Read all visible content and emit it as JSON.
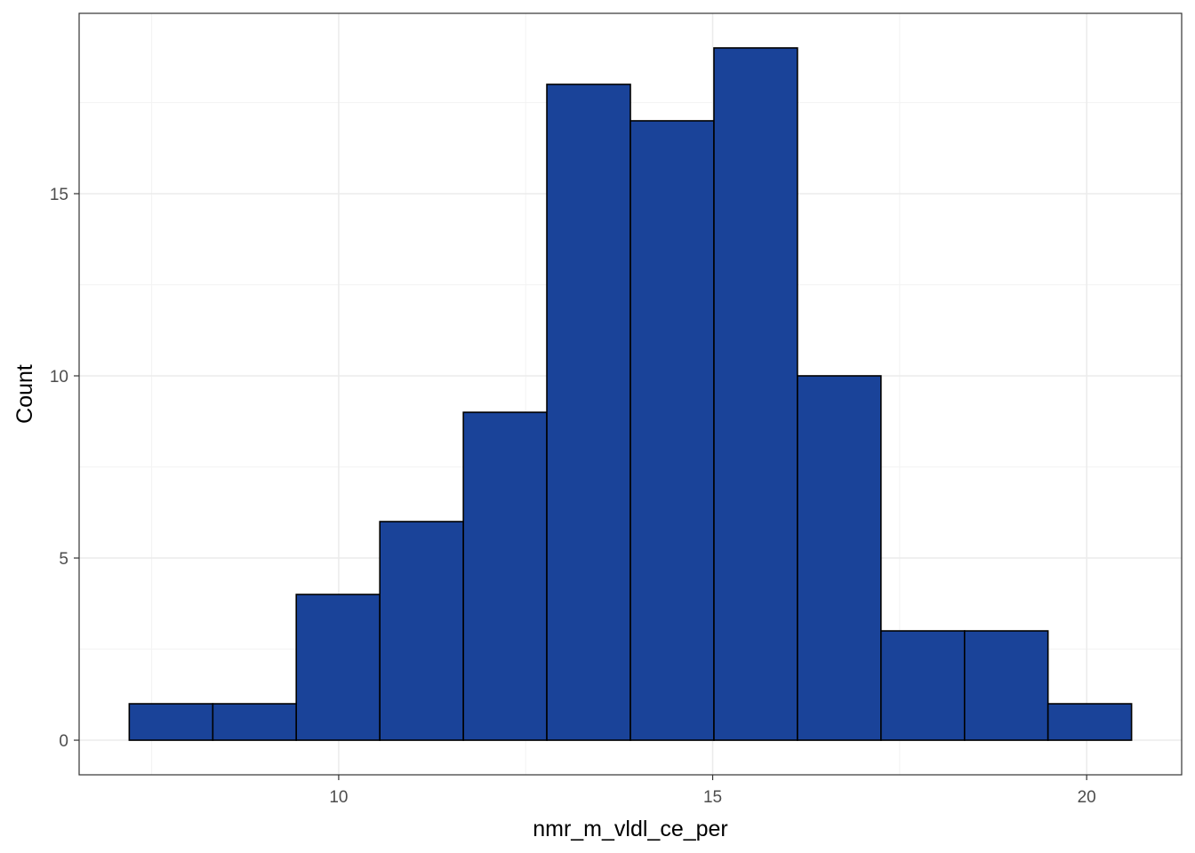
{
  "chart_data": {
    "type": "bar",
    "bin_edges": [
      7.2,
      8.317,
      9.433,
      10.55,
      11.667,
      12.783,
      13.9,
      15.017,
      16.133,
      17.25,
      18.367,
      19.483,
      20.6
    ],
    "values": [
      1,
      1,
      4,
      6,
      9,
      18,
      17,
      19,
      10,
      3,
      3,
      1
    ],
    "xlabel": "nmr_m_vldl_ce_per",
    "ylabel": "Count",
    "xlim": [
      6.53,
      21.27
    ],
    "ylim": [
      -0.95,
      19.95
    ],
    "x_ticks": [
      10,
      15,
      20
    ],
    "y_ticks": [
      0,
      5,
      10,
      15
    ],
    "x_minor_ticks": [
      7.5,
      12.5,
      17.5
    ],
    "y_minor_ticks": [
      2.5,
      7.5,
      12.5,
      17.5
    ],
    "grid": true,
    "colors": {
      "bar_fill": "#1a4399",
      "bar_outline": "#000000",
      "grid_major": "#ebebeb",
      "grid_minor": "#f3f3f3",
      "panel_border": "#333333"
    }
  }
}
